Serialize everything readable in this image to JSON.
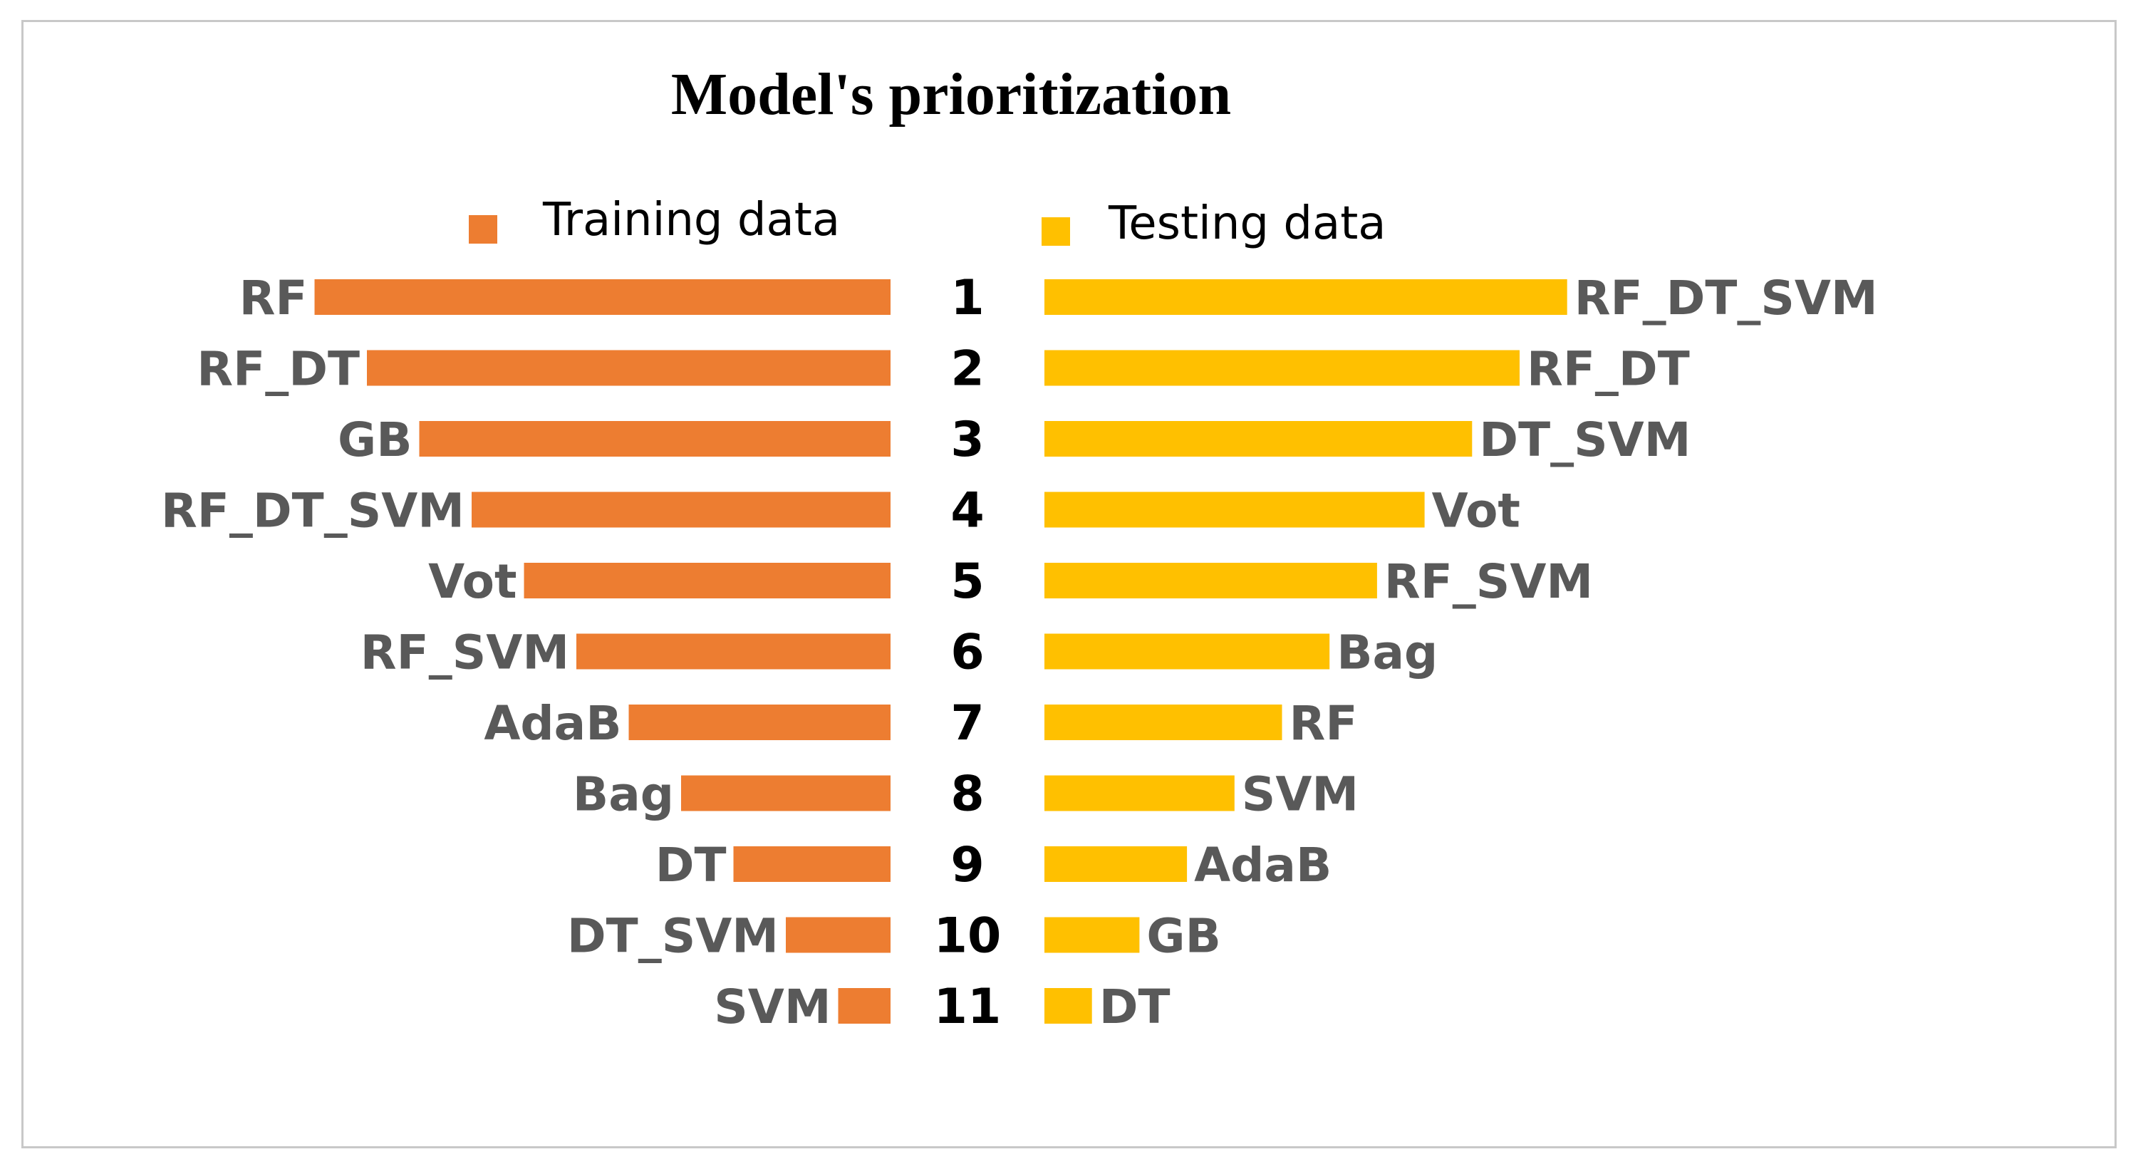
{
  "chart_data": {
    "type": "bar",
    "title": "Model's prioritization",
    "ranks": [
      "1",
      "2",
      "3",
      "4",
      "5",
      "6",
      "7",
      "8",
      "9",
      "10",
      "11"
    ],
    "series": [
      {
        "name": "Training data",
        "color": "#ed7d31",
        "side": "left",
        "labels": [
          "RF",
          "RF_DT",
          "GB",
          "RF_DT_SVM",
          "Vot",
          "RF_SVM",
          "AdaB",
          "Bag",
          "DT",
          "DT_SVM",
          "SVM"
        ],
        "values": [
          11,
          10,
          9,
          8,
          7,
          6,
          5,
          4,
          3,
          2,
          1
        ]
      },
      {
        "name": "Testing data",
        "color": "#ffc000",
        "side": "right",
        "labels": [
          "RF_DT_SVM",
          "RF_DT",
          "DT_SVM",
          "Vot",
          "RF_SVM",
          "Bag",
          "RF",
          "SVM",
          "AdaB",
          "GB",
          "DT"
        ],
        "values": [
          11,
          10,
          9,
          8,
          7,
          6,
          5,
          4,
          3,
          2,
          1
        ]
      }
    ],
    "grid": false,
    "legend_position": "top"
  }
}
